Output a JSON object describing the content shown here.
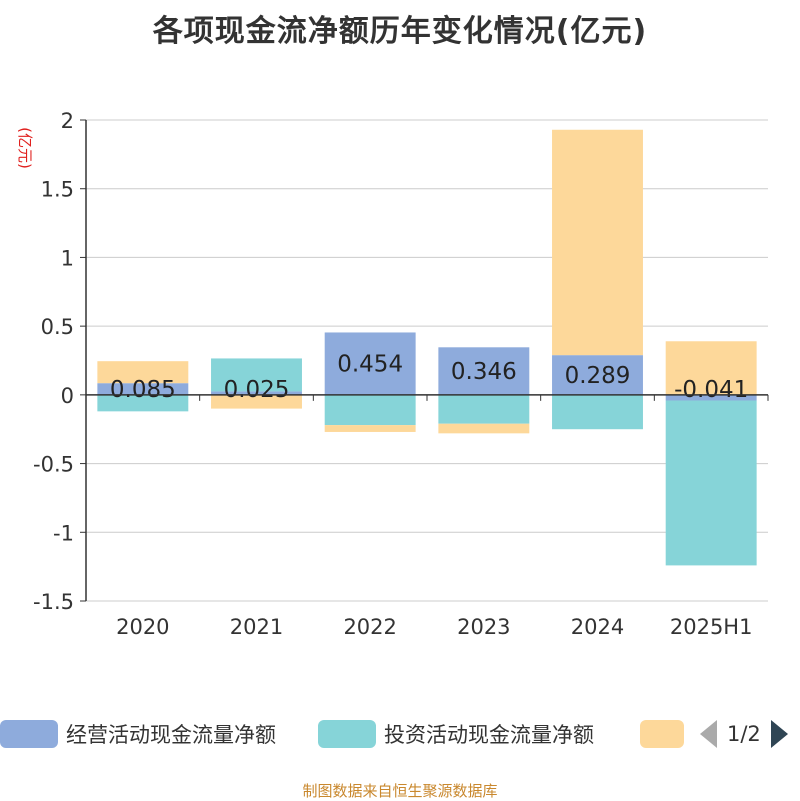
{
  "title": "各项现金流净额历年变化情况(亿元)",
  "source": "制图数据来自恒生聚源数据库",
  "legend": {
    "items": [
      {
        "label": "经营活动现金流量净额",
        "color": "#8eabdc"
      },
      {
        "label": "投资活动现金流量净额",
        "color": "#86d4d8"
      },
      {
        "label": "",
        "color": "#fdd89a"
      }
    ],
    "page": "1/2"
  },
  "chart_data": {
    "type": "bar",
    "stacked": true,
    "unit_label": "(亿元)",
    "categories": [
      "2020",
      "2021",
      "2022",
      "2023",
      "2024",
      "2025H1"
    ],
    "ylim": [
      -1.5,
      2
    ],
    "yticks": [
      2,
      1.5,
      1,
      0.5,
      0,
      -0.5,
      -1,
      -1.5
    ],
    "ytick_labels": [
      "2",
      "1.5",
      "1",
      "0.5",
      "0",
      "-0.5",
      "-1",
      "-1.5"
    ],
    "grid": true,
    "legend_position": "bottom",
    "series": [
      {
        "name": "经营活动现金流量净额",
        "color": "#8eabdc",
        "values": [
          0.085,
          0.025,
          0.454,
          0.346,
          0.289,
          -0.041
        ],
        "labels": [
          "0.085",
          "0.025",
          "0.454",
          "0.346",
          "0.289",
          "-0.041"
        ]
      },
      {
        "name": "投资活动现金流量净额",
        "color": "#86d4d8",
        "values": [
          -0.12,
          0.24,
          -0.22,
          -0.21,
          -0.25,
          -1.2
        ],
        "labels": [
          "",
          "",
          "",
          "",
          "",
          ""
        ]
      },
      {
        "name": "",
        "color": "#fdd89a",
        "values": [
          0.16,
          -0.1,
          -0.05,
          -0.07,
          1.64,
          0.39
        ],
        "labels": [
          "",
          "",
          "",
          "",
          "",
          ""
        ]
      }
    ]
  }
}
